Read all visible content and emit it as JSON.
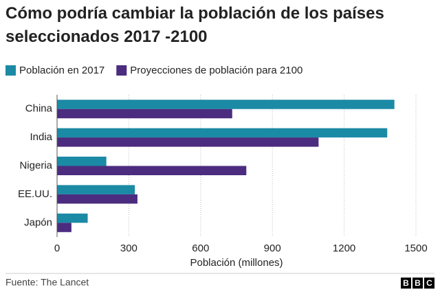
{
  "chart_data": {
    "type": "barh",
    "title": "Cómo podría cambiar la población de los países seleccionados 2017 -2100",
    "categories": [
      "China",
      "India",
      "Nigeria",
      "EE.UU.",
      "Japón"
    ],
    "series": [
      {
        "name": "Población en 2017",
        "color": "#1b8aa5",
        "values": [
          1410,
          1380,
          206,
          325,
          128
        ]
      },
      {
        "name": "Proyecciones de población para 2100",
        "color": "#4b2c7f",
        "values": [
          732,
          1093,
          791,
          336,
          60
        ]
      }
    ],
    "xlim": [
      0,
      1500
    ],
    "xticks": [
      0,
      300,
      600,
      900,
      1200,
      1500
    ],
    "grid": true,
    "xlabel": "Población (millones)",
    "source": "Fuente: The Lancet",
    "logo": [
      "B",
      "B",
      "C"
    ]
  }
}
